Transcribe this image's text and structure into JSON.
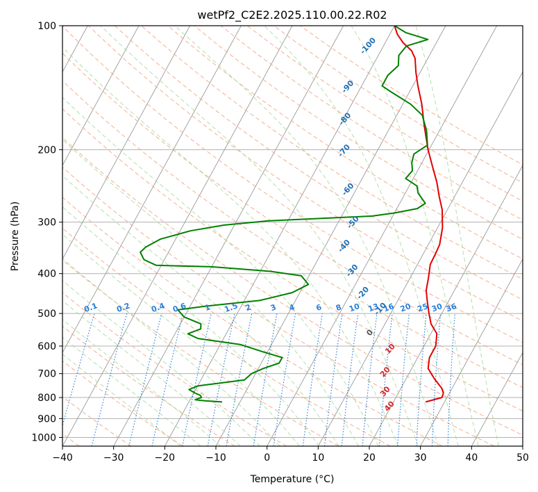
{
  "chart_data": {
    "type": "line",
    "title": "wetPf2_C2E2.2025.110.00.22.R02",
    "xlabel": "Temperature (°C)",
    "ylabel": "Pressure (hPa)",
    "xlim": [
      -40,
      50
    ],
    "ylim": [
      1050,
      100
    ],
    "y_scale": "log",
    "x_ticks": [
      -40,
      -30,
      -20,
      -10,
      0,
      10,
      20,
      30,
      40,
      50
    ],
    "y_ticks": [
      100,
      200,
      300,
      400,
      500,
      600,
      700,
      800,
      900,
      1000
    ],
    "grid": true,
    "skew_slope_celsius_per_decade": 44,
    "series": [
      {
        "color": "#e00000",
        "points": [
          [
            26.3,
            820
          ],
          [
            29.0,
            800
          ],
          [
            28.8,
            780
          ],
          [
            28.0,
            760
          ],
          [
            25.5,
            720
          ],
          [
            23.2,
            680
          ],
          [
            22.3,
            640
          ],
          [
            22.3,
            600
          ],
          [
            21.2,
            560
          ],
          [
            19.0,
            530
          ],
          [
            17.5,
            500
          ],
          [
            16.0,
            470
          ],
          [
            14.5,
            440
          ],
          [
            13.6,
            410
          ],
          [
            12.5,
            380
          ],
          [
            12.4,
            360
          ],
          [
            12.2,
            340
          ],
          [
            11.0,
            310
          ],
          [
            9.0,
            280
          ],
          [
            7.0,
            260
          ],
          [
            5.0,
            240
          ],
          [
            2.5,
            220
          ],
          [
            -0.2,
            200
          ],
          [
            -3.5,
            175
          ],
          [
            -6.3,
            155
          ],
          [
            -9.0,
            140
          ],
          [
            -10.8,
            130
          ],
          [
            -12.5,
            120
          ],
          [
            -14.0,
            115
          ],
          [
            -16.5,
            110
          ],
          [
            -18.5,
            105
          ],
          [
            -20.0,
            100
          ]
        ]
      },
      {
        "color": "#008000",
        "points": [
          [
            -13.5,
            820
          ],
          [
            -17.0,
            815
          ],
          [
            -19.0,
            810
          ],
          [
            -18.0,
            800
          ],
          [
            -18.5,
            790
          ],
          [
            -19.8,
            780
          ],
          [
            -21.3,
            765
          ],
          [
            -20.0,
            750
          ],
          [
            -11.5,
            725
          ],
          [
            -10.8,
            700
          ],
          [
            -9.0,
            680
          ],
          [
            -6.5,
            660
          ],
          [
            -6.5,
            640
          ],
          [
            -10.8,
            620
          ],
          [
            -16.0,
            595
          ],
          [
            -25.0,
            575
          ],
          [
            -27.5,
            560
          ],
          [
            -25.5,
            545
          ],
          [
            -26.0,
            530
          ],
          [
            -30.0,
            510
          ],
          [
            -32.0,
            490
          ],
          [
            -27.0,
            480
          ],
          [
            -17.0,
            465
          ],
          [
            -11.5,
            445
          ],
          [
            -9.2,
            425
          ],
          [
            -11.5,
            405
          ],
          [
            -18.0,
            395
          ],
          [
            -30.0,
            385
          ],
          [
            -41.0,
            382
          ],
          [
            -44.0,
            370
          ],
          [
            -45.5,
            355
          ],
          [
            -45.0,
            345
          ],
          [
            -43.0,
            330
          ],
          [
            -38.0,
            315
          ],
          [
            -32.0,
            305
          ],
          [
            -24.0,
            298
          ],
          [
            -4.0,
            290
          ],
          [
            0.0,
            285
          ],
          [
            4.0,
            278
          ],
          [
            5.0,
            270
          ],
          [
            2.5,
            255
          ],
          [
            1.5,
            245
          ],
          [
            -1.5,
            235
          ],
          [
            -1.0,
            225
          ],
          [
            -2.0,
            215
          ],
          [
            -2.5,
            205
          ],
          [
            -0.8,
            195
          ],
          [
            -2.5,
            180
          ],
          [
            -5.0,
            165
          ],
          [
            -8.5,
            155
          ],
          [
            -13.5,
            145
          ],
          [
            -16.0,
            140
          ],
          [
            -16.0,
            132
          ],
          [
            -15.0,
            125
          ],
          [
            -16.0,
            118
          ],
          [
            -15.5,
            112
          ],
          [
            -12.0,
            108
          ],
          [
            -17.0,
            104
          ],
          [
            -20.0,
            100
          ]
        ]
      }
    ],
    "dry_adiabat_labels": [
      "-100",
      "-90",
      "-80",
      "-70",
      "-60",
      "-50",
      "-40",
      "-30",
      "-20",
      "-10",
      "0",
      "10",
      "20",
      "30",
      "40"
    ],
    "mixing_ratio_labels": [
      "0.1",
      "0.2",
      "0.4",
      "0.6",
      "1",
      "1.5",
      "2",
      "3",
      "4",
      "6",
      "8",
      "10",
      "13",
      "16",
      "20",
      "25",
      "30",
      "36"
    ],
    "colors": {
      "temperature": "#e00000",
      "dewpoint": "#008000",
      "dry_adiabat": "#f4a582",
      "moist_adiabat": "#a6d99a",
      "mixing_ratio": "#2c7fd6",
      "isotherm": "#999999",
      "cold_label": "#1f6fb4",
      "warm_label": "#d62728",
      "zero_label": "#555555"
    }
  }
}
